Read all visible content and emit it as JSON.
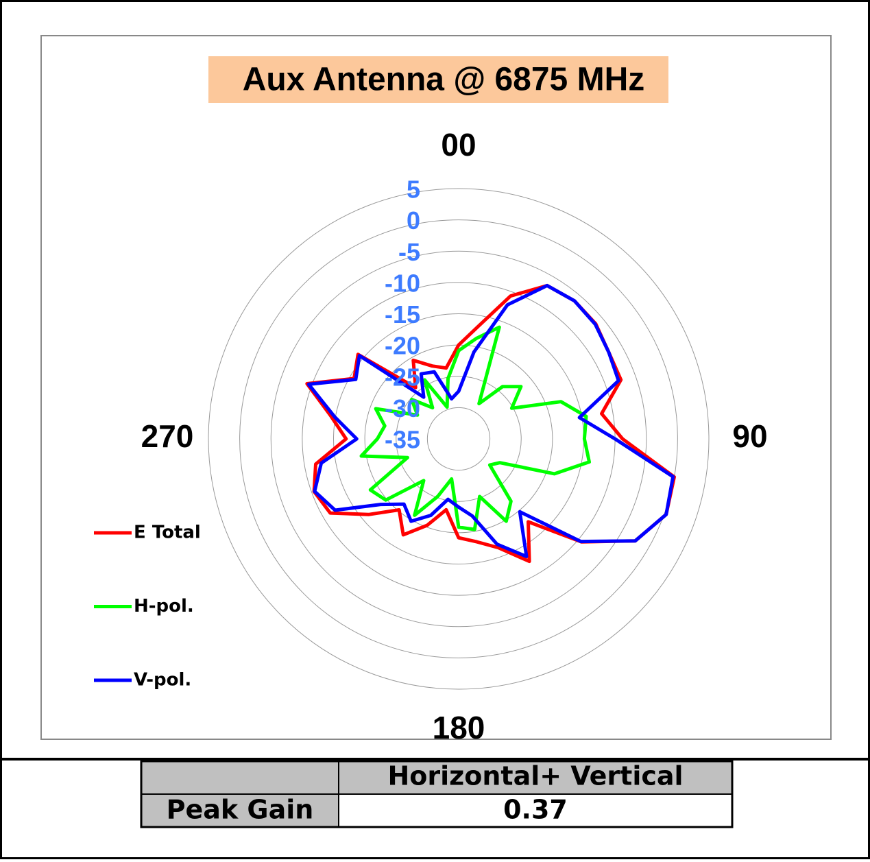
{
  "chart_data": {
    "type": "polar",
    "title": "Aux Antenna @ 6875 MHz",
    "angle_ticks": [
      {
        "value": 0,
        "label": "00"
      },
      90,
      180,
      270
    ],
    "rlim": [
      -35,
      5
    ],
    "rticks": [
      5,
      0,
      -5,
      -10,
      -15,
      -20,
      -25,
      -30,
      -35
    ],
    "x": [
      0,
      10,
      20,
      30,
      40,
      50,
      60,
      70,
      80,
      90,
      100,
      110,
      120,
      130,
      140,
      150,
      160,
      170,
      180,
      190,
      200,
      210,
      220,
      230,
      240,
      250,
      260,
      270,
      280,
      290,
      300,
      310,
      320,
      330,
      340,
      350
    ],
    "series": [
      {
        "name": "E Total",
        "color": "#ff0000",
        "values": [
          -20.0,
          -16.7,
          -10.7,
          -6.7,
          -6.2,
          -6.4,
          -7.3,
          -7.4,
          -11.8,
          -8.8,
          0,
          0.3,
          -2.4,
          -9.4,
          -17.7,
          -12.4,
          -16.5,
          -18.3,
          -19.2,
          -23.5,
          -20.3,
          -17.3,
          -20.2,
          -16.2,
          -11.3,
          -10.4,
          -11.8,
          -17,
          -14.3,
          -9.2,
          -15.7,
          -14,
          -24.3,
          -20.5,
          -22.6,
          -23.5
        ]
      },
      {
        "name": "H-pol.",
        "color": "#00ff00",
        "values": [
          -20.9,
          -18.7,
          -16,
          -28.5,
          -24.1,
          -22,
          -25.2,
          -17.6,
          -14.3,
          -14.9,
          -13.8,
          -18.7,
          -27.4,
          -28.5,
          -22,
          -19.8,
          -25.2,
          -20.3,
          -20.9,
          -28.5,
          -25.2,
          -20.9,
          -26.3,
          -19.8,
          -18.7,
          -26.3,
          -19.2,
          -22,
          -23,
          -20.9,
          -27.4,
          -25.2,
          -28.5,
          -24.1,
          -29.6,
          -25.2
        ]
      },
      {
        "name": "V-pol.",
        "color": "#0000ff",
        "values": [
          -27.4,
          -20.9,
          -12.2,
          -6.7,
          -6.2,
          -6.5,
          -7.3,
          -7.8,
          -15.4,
          -10,
          -0.2,
          0.3,
          -2.4,
          -9.5,
          -19.8,
          -13.3,
          -17.1,
          -22.5,
          -24.1,
          -25.2,
          -22,
          -19.8,
          -21.4,
          -18.7,
          -12.2,
          -10.5,
          -12.7,
          -18.7,
          -14.9,
          -9.5,
          -16,
          -14.3,
          -26.3,
          -23,
          -23.6,
          -28.5
        ]
      }
    ]
  },
  "table": {
    "columns": [
      "Horizontal+ Vertical"
    ],
    "rows": [
      {
        "label": "Peak Gain",
        "value": 0.37
      }
    ]
  }
}
